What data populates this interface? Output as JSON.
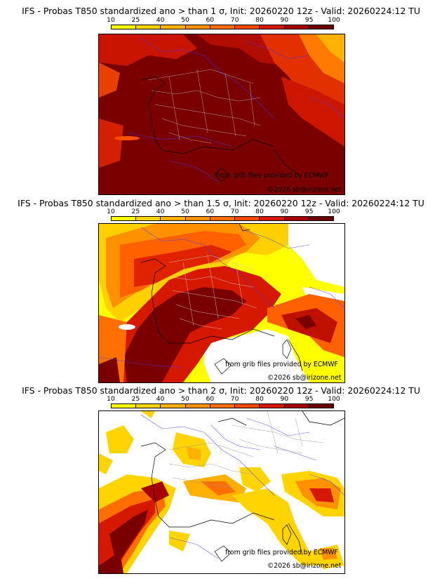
{
  "scale": {
    "labels": [
      "10",
      "25",
      "40",
      "50",
      "60",
      "70",
      "80",
      "90",
      "95",
      "100"
    ],
    "colors": [
      "#ffff00",
      "#ffd400",
      "#ffb000",
      "#ff9000",
      "#ff6e00",
      "#f24a00",
      "#d61800",
      "#a80000",
      "#6a0000"
    ]
  },
  "panels": [
    {
      "title": "IFS - Probas T850  standardized ano > than 1 σ, Init: 20260220 12z - Valid: 20260224:12 TU",
      "credit": "from grib files provided by ECMWF",
      "copyright": "©2026 sb@irizone.net",
      "dominant_color": "#780000"
    },
    {
      "title": "IFS - Probas T850  standardized ano > than 1.5 σ, Init: 20260220 12z - Valid: 20260224:12 TU",
      "credit": "from grib files provided by ECMWF",
      "copyright": "©2026 sb@irizone.net",
      "dominant_color": "#780000"
    },
    {
      "title": "IFS - Probas T850  standardized ano > than 2 σ, Init: 20260220 12z - Valid: 20260224:12 TU",
      "credit": "from grib files provided by ECMWF",
      "copyright": "©2026 sb@irizone.net",
      "dominant_color": "#ffffff"
    }
  ]
}
